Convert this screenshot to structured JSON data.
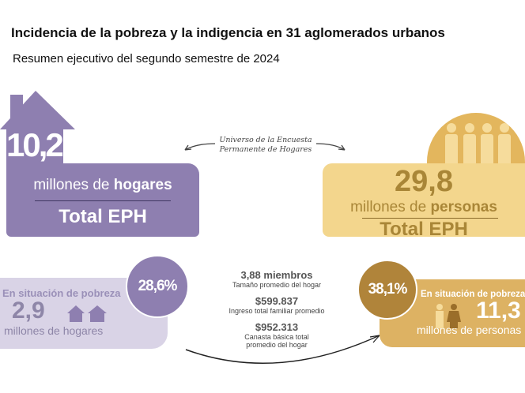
{
  "header": {
    "title": "Incidencia de la pobreza y la indigencia en 31 aglomerados urbanos",
    "subtitle": "Resumen ejecutivo del segundo semestre de 2024"
  },
  "universe_label": [
    "Universo de la Encuesta",
    "Permanente de Hogares"
  ],
  "households_total": {
    "value": "10,2",
    "unit_prefix": "millones de ",
    "unit_bold": "hogares",
    "label": "Total EPH",
    "color": "#8e7fb0"
  },
  "persons_total": {
    "value": "29,8",
    "unit_prefix": "millones de ",
    "unit_bold": "personas",
    "label": "Total EPH",
    "color": "#f3d68d"
  },
  "households_poverty": {
    "percent": "28,6%",
    "label": "En situación de pobreza",
    "value": "2,9",
    "unit": "millones de hogares",
    "color": "#d9d3e6"
  },
  "persons_poverty": {
    "percent": "38,1%",
    "label": "En situación de pobreza",
    "value": "11,3",
    "unit": "millones de personas",
    "color": "#ddb263"
  },
  "stats": [
    {
      "value": "3,88 miembros",
      "label": "Tamaño promedio del hogar"
    },
    {
      "value": "$599.837",
      "label": "Ingreso total familiar promedio"
    },
    {
      "value": "$952.313",
      "label": "Canasta básica total",
      "label2": "promedio del hogar"
    }
  ]
}
